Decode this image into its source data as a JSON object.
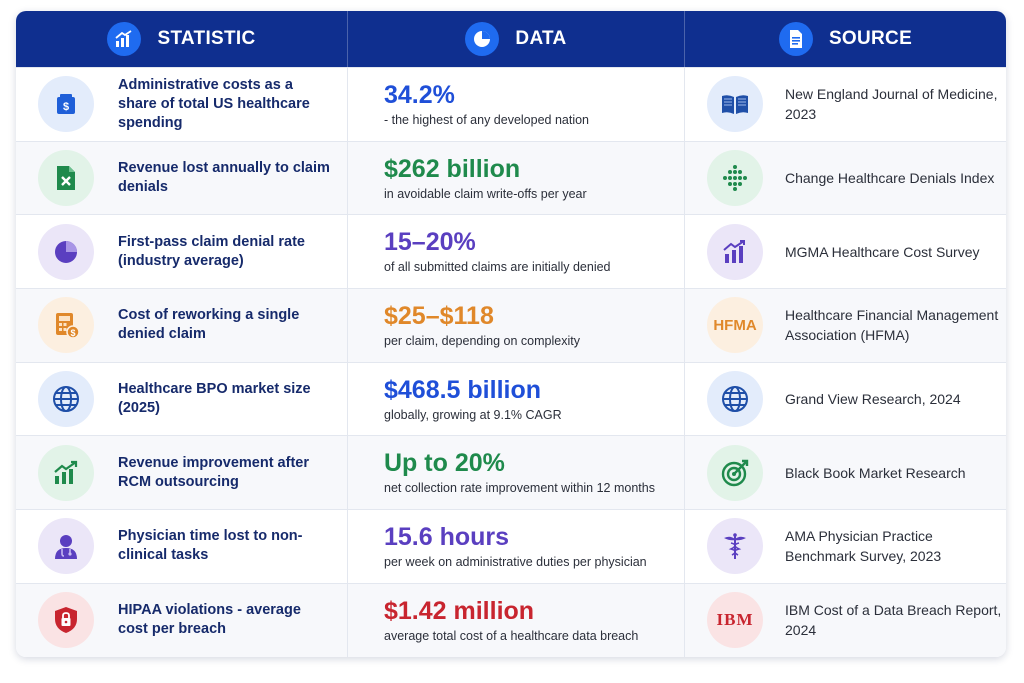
{
  "header": {
    "statistic": "STATISTIC",
    "data": "DATA",
    "source": "SOURCE"
  },
  "colors": {
    "header_bg": "#0f2f8f",
    "blue": "#1f4fd8",
    "green": "#1f8a4c",
    "purple": "#5a3fc0",
    "orange": "#e0882a",
    "red": "#c8252f"
  },
  "rows": [
    {
      "statistic": "Administrative costs as a share of total US healthcare spending",
      "stat_icon": "wallet-icon",
      "value": "34.2%",
      "value_color": "#1f4fd8",
      "detail": "- the highest of any developed nation",
      "source": "New England Journal of Medicine, 2023",
      "source_icon": "open-book-icon"
    },
    {
      "statistic": "Revenue lost annually to claim denials",
      "stat_icon": "spreadsheet-x-icon",
      "value": "$262 billion",
      "value_color": "#1f8a4c",
      "detail": "in avoidable claim write-offs per year",
      "source": "Change Healthcare Denials Index",
      "source_icon": "dot-grid-logo-icon"
    },
    {
      "statistic": "First-pass claim denial rate (industry average)",
      "stat_icon": "pie-chart-icon",
      "value": "15–20%",
      "value_color": "#5a3fc0",
      "detail": "of all submitted claims are initially denied",
      "source": "MGMA Healthcare Cost Survey",
      "source_icon": "bar-chart-up-icon"
    },
    {
      "statistic": "Cost of reworking a single denied claim",
      "stat_icon": "calculator-icon",
      "value": "$25–$118",
      "value_color": "#e0882a",
      "detail": "per claim, depending on complexity",
      "source": "Healthcare Financial Management Association (HFMA)",
      "source_icon": "hfma-logo",
      "source_logo_text": "HFMA"
    },
    {
      "statistic": "Healthcare BPO market size (2025)",
      "stat_icon": "globe-icon",
      "value": "$468.5 billion",
      "value_color": "#1f4fd8",
      "detail": "globally, growing at 9.1% CAGR",
      "source": "Grand View Research, 2024",
      "source_icon": "globe-icon"
    },
    {
      "statistic": "Revenue improvement after RCM outsourcing",
      "stat_icon": "growth-chart-icon",
      "value": "Up to 20%",
      "value_color": "#1f8a4c",
      "detail": "net collection rate improvement within 12 months",
      "source": "Black Book Market Research",
      "source_icon": "target-icon"
    },
    {
      "statistic": "Physician time lost to non-clinical tasks",
      "stat_icon": "doctor-icon",
      "value": "15.6 hours",
      "value_color": "#5a3fc0",
      "detail": "per week on administrative duties per physician",
      "source": "AMA Physician Practice Benchmark Survey, 2023",
      "source_icon": "caduceus-icon"
    },
    {
      "statistic": "HIPAA violations - average cost per breach",
      "stat_icon": "shield-lock-icon",
      "value": "$1.42 million",
      "value_color": "#c8252f",
      "detail": "average total cost of a healthcare data breach",
      "source": "IBM Cost of a Data Breach Report, 2024",
      "source_icon": "ibm-logo",
      "source_logo_text": "IBM"
    }
  ]
}
